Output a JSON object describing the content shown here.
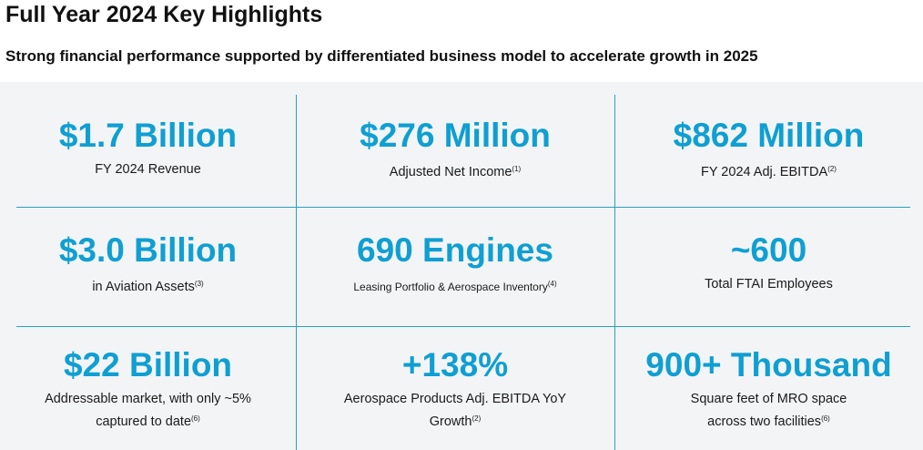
{
  "header": {
    "title": "Full Year 2024 Key Highlights",
    "subtitle": "Strong financial performance supported by differentiated business model to accelerate growth in 2025"
  },
  "cells": [
    {
      "value": "$1.7 Billion",
      "lines": [
        "FY 2024 Revenue"
      ]
    },
    {
      "value": "$276 Million",
      "lines": [
        "Adjusted Net Income"
      ],
      "footnote": "(1)"
    },
    {
      "value": "$862 Million",
      "lines": [
        "FY 2024 Adj. EBITDA"
      ],
      "footnote": "(2)"
    },
    {
      "value": "$3.0 Billion",
      "lines": [
        "in Aviation Assets"
      ],
      "footnote": "(3)"
    },
    {
      "value": "690 Engines",
      "lines": [
        "Leasing Portfolio & Aerospace Inventory"
      ],
      "footnote": "(4)",
      "small": true
    },
    {
      "value": "~600",
      "lines": [
        "Total FTAI Employees"
      ]
    },
    {
      "value": "$22 Billion",
      "lines": [
        "Addressable market, with only ~5%",
        "captured to date"
      ],
      "footnote": "(6)"
    },
    {
      "value": "+138%",
      "lines": [
        "Aerospace Products Adj. EBITDA YoY",
        "Growth"
      ],
      "footnote": "(2)"
    },
    {
      "value": "900+ Thousand",
      "lines": [
        "Square feet of MRO space",
        "across two facilities"
      ],
      "footnote": "(6)"
    }
  ]
}
